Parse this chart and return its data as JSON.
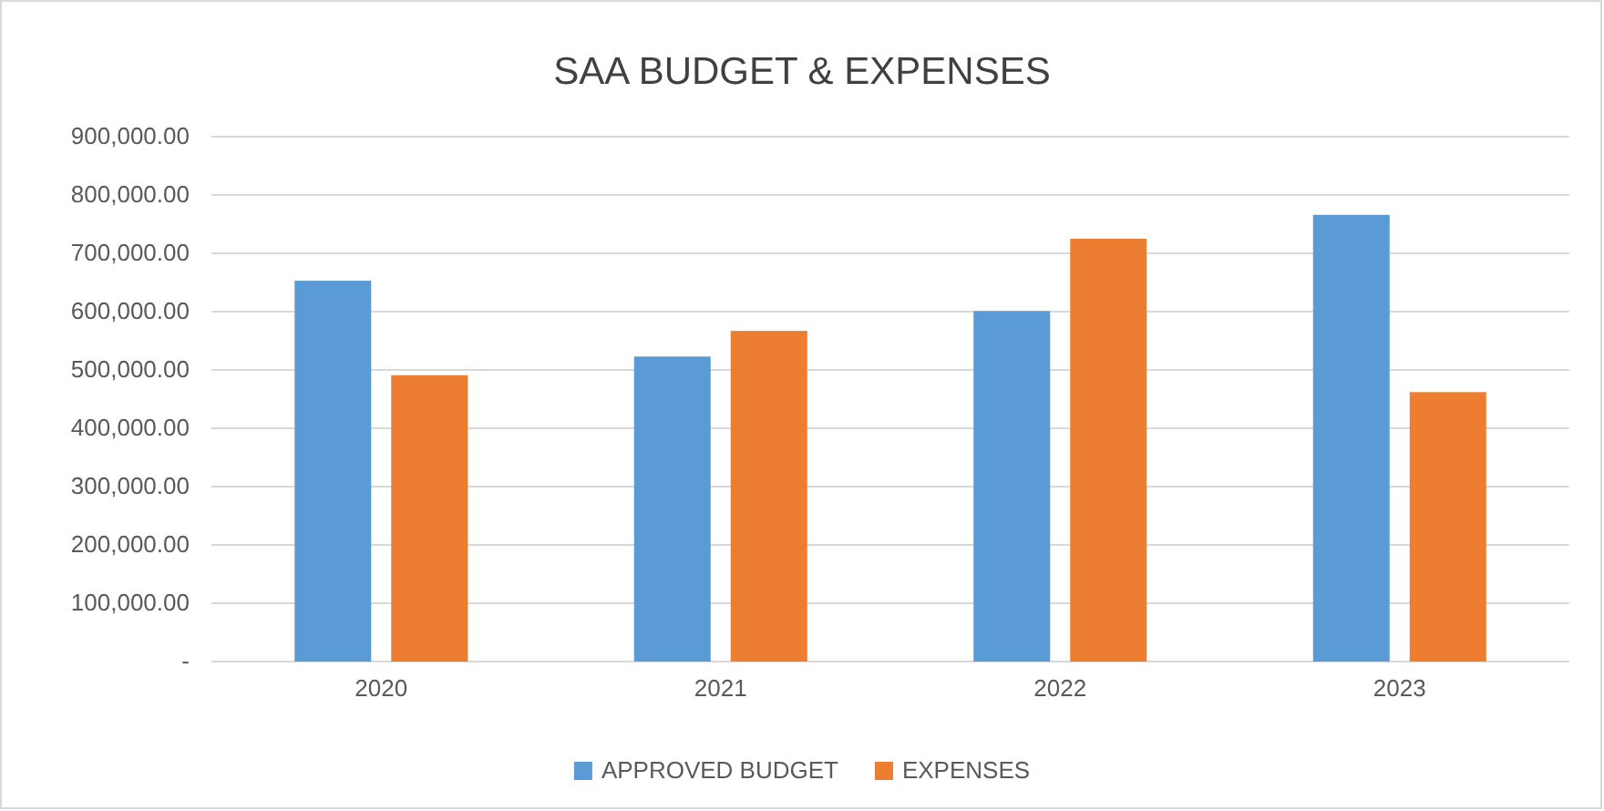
{
  "chart_data": {
    "type": "bar",
    "title": "SAA BUDGET & EXPENSES",
    "categories": [
      "2020",
      "2021",
      "2022",
      "2023"
    ],
    "series": [
      {
        "name": "APPROVED BUDGET",
        "color": "#5b9bd5",
        "values": [
          653000,
          523000,
          601000,
          766000
        ]
      },
      {
        "name": "EXPENSES",
        "color": "#ed7d31",
        "values": [
          491000,
          567000,
          725000,
          462000
        ]
      }
    ],
    "ylim": [
      0,
      900000
    ],
    "yticks": [
      {
        "value": 0,
        "label": "-"
      },
      {
        "value": 100000,
        "label": "100,000.00"
      },
      {
        "value": 200000,
        "label": "200,000.00"
      },
      {
        "value": 300000,
        "label": "300,000.00"
      },
      {
        "value": 400000,
        "label": "400,000.00"
      },
      {
        "value": 500000,
        "label": "500,000.00"
      },
      {
        "value": 600000,
        "label": "600,000.00"
      },
      {
        "value": 700000,
        "label": "700,000.00"
      },
      {
        "value": 800000,
        "label": "800,000.00"
      },
      {
        "value": 900000,
        "label": "900,000.00"
      }
    ],
    "grid": "y",
    "legend": "bottom"
  }
}
